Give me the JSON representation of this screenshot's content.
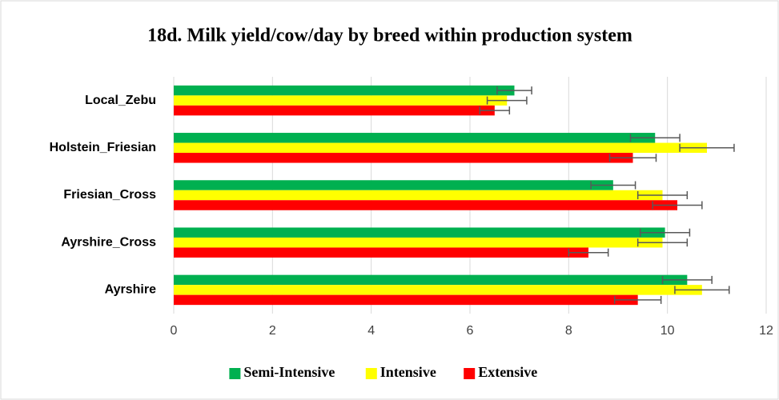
{
  "chart_data": {
    "type": "bar",
    "orientation": "horizontal",
    "title": "18d. Milk yield/cow/day by breed within production system",
    "categories": [
      "Local_Zebu",
      "Holstein_Friesian",
      "Friesian_Cross",
      "Ayrshire_Cross",
      "Ayrshire"
    ],
    "series": [
      {
        "name": "Semi-Intensive",
        "color": "#00b050",
        "values": [
          6.9,
          9.75,
          8.9,
          9.95,
          10.4
        ],
        "errors": [
          0.35,
          0.5,
          0.45,
          0.5,
          0.5
        ]
      },
      {
        "name": "Intensive",
        "color": "#ffff00",
        "values": [
          6.75,
          10.8,
          9.9,
          9.9,
          10.7
        ],
        "errors": [
          0.4,
          0.55,
          0.5,
          0.5,
          0.55
        ]
      },
      {
        "name": "Extensive",
        "color": "#ff0000",
        "values": [
          6.5,
          9.3,
          10.2,
          8.4,
          9.4
        ],
        "errors": [
          0.3,
          0.47,
          0.5,
          0.4,
          0.47
        ]
      }
    ],
    "xlim": [
      0,
      12
    ],
    "xticks": [
      0,
      2,
      4,
      6,
      8,
      10,
      12
    ],
    "grid": true,
    "legend": "bottom"
  }
}
